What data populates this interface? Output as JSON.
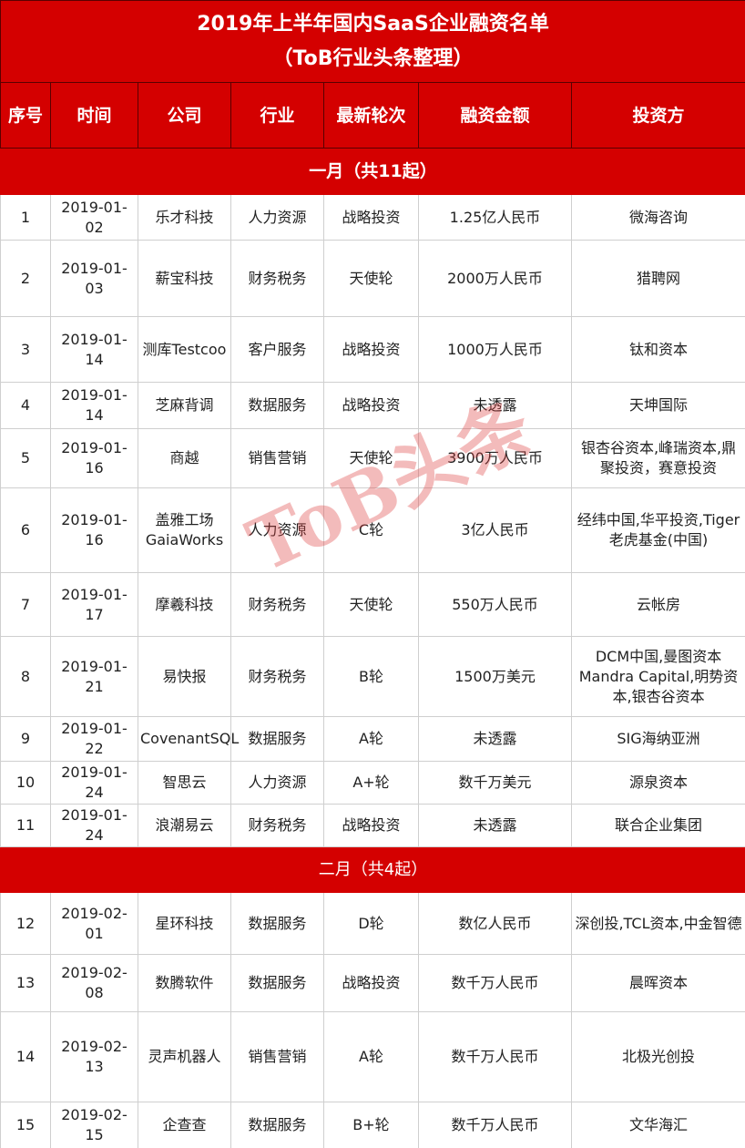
{
  "title_line1": "2019年上半年国内SaaS企业融资名单",
  "title_line2": "（ToB行业头条整理）",
  "headers": [
    "序号",
    "时间",
    "公司",
    "行业",
    "最新轮次",
    "融资金额",
    "投资方"
  ],
  "watermark": "ToB头条",
  "colors": {
    "header_red": "#d40000"
  },
  "sections": [
    {
      "label": "一月（共11起）",
      "rows": [
        [
          "1",
          "2019-01-02",
          "乐才科技",
          "人力资源",
          "战略投资",
          "1.25亿人民币",
          "微海咨询"
        ],
        [
          "2",
          "2019-01-03",
          "薪宝科技",
          "财务税务",
          "天使轮",
          "2000万人民币",
          "猎聘网"
        ],
        [
          "3",
          "2019-01-14",
          "测库Testcoo",
          "客户服务",
          "战略投资",
          "1000万人民币",
          "钛和资本"
        ],
        [
          "4",
          "2019-01-14",
          "芝麻背调",
          "数据服务",
          "战略投资",
          "未透露",
          "天坤国际"
        ],
        [
          "5",
          "2019-01-16",
          "商越",
          "销售营销",
          "天使轮",
          "3900万人民币",
          "银杏谷资本,峰瑞资本,鼎聚投资，赛意投资"
        ],
        [
          "6",
          "2019-01-16",
          "盖雅工场GaiaWorks",
          "人力资源",
          "C轮",
          "3亿人民币",
          "经纬中国,华平投资,Tiger老虎基金(中国)"
        ],
        [
          "7",
          "2019-01-17",
          "摩羲科技",
          "财务税务",
          "天使轮",
          "550万人民币",
          "云帐房"
        ],
        [
          "8",
          "2019-01-21",
          "易快报",
          "财务税务",
          "B轮",
          "1500万美元",
          "DCM中国,曼图资本Mandra Capital,明势资本,银杏谷资本"
        ],
        [
          "9",
          "2019-01-22",
          "CovenantSQL",
          "数据服务",
          "A轮",
          "未透露",
          "SIG海纳亚洲"
        ],
        [
          "10",
          "2019-01-24",
          "智思云",
          "人力资源",
          "A+轮",
          "数千万美元",
          "源泉资本"
        ],
        [
          "11",
          "2019-01-24",
          "浪潮易云",
          "财务税务",
          "战略投资",
          "未透露",
          "联合企业集团"
        ]
      ]
    },
    {
      "label": "二月（共4起）",
      "rows": [
        [
          "12",
          "2019-02-01",
          "星环科技",
          "数据服务",
          "D轮",
          "数亿人民币",
          "深创投,TCL资本,中金智德"
        ],
        [
          "13",
          "2019-02-08",
          "数腾软件",
          "数据服务",
          "战略投资",
          "数千万人民币",
          "晨晖资本"
        ],
        [
          "14",
          "2019-02-13",
          "灵声机器人",
          "销售营销",
          "A轮",
          "数千万人民币",
          "北极光创投"
        ],
        [
          "15",
          "2019-02-15",
          "企查查",
          "数据服务",
          "B+轮",
          "数千万人民币",
          "文华海汇"
        ]
      ]
    }
  ]
}
